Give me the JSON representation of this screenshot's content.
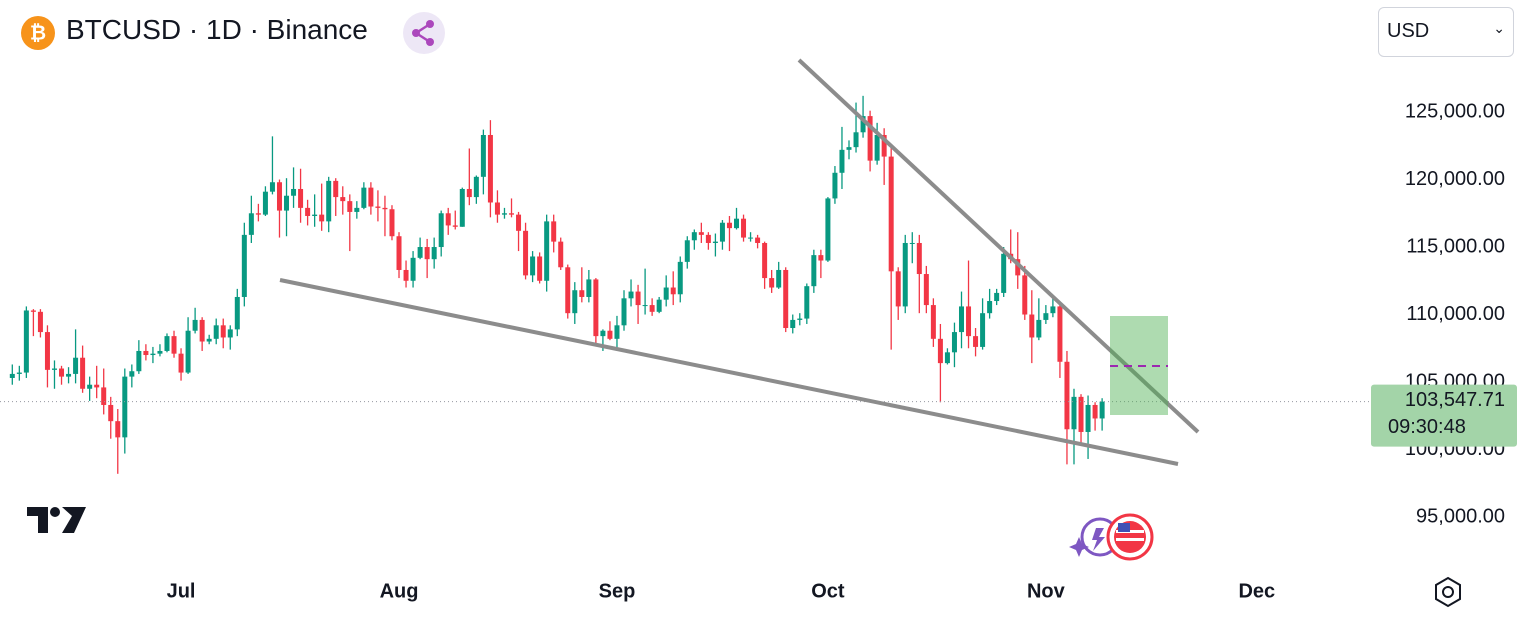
{
  "chart_data": {
    "type": "candlestick",
    "title": "BTCUSD · 1D · Binance",
    "currency": "USD",
    "last_price_label": "103,547.71",
    "countdown": "09:30:48",
    "color_up": "#089981",
    "color_down": "#f23645",
    "xlim": [
      -1.75,
      193.1
    ],
    "xticks": [
      {
        "value": 24,
        "label": "Jul"
      },
      {
        "value": 55,
        "label": "Aug"
      },
      {
        "value": 86,
        "label": "Sep"
      },
      {
        "value": 116,
        "label": "Oct"
      },
      {
        "value": 147,
        "label": "Nov"
      },
      {
        "value": 177,
        "label": "Dec"
      }
    ],
    "ylim": [
      91000,
      133300
    ],
    "yticks": [
      {
        "value": 95000,
        "label": "95,000.00"
      },
      {
        "value": 100000,
        "label": "100,000.00"
      },
      {
        "value": 105000,
        "label": "105,000.00"
      },
      {
        "value": 110000,
        "label": "110,000.00"
      },
      {
        "value": 115000,
        "label": "115,000.00"
      },
      {
        "value": 120000,
        "label": "120,000.00"
      },
      {
        "value": 125000,
        "label": "125,000.00"
      }
    ],
    "open": [
      105300,
      105600,
      105700,
      110300,
      110200,
      108700,
      105900,
      106000,
      105400,
      105600,
      106800,
      104500,
      104800,
      104600,
      103300,
      102100,
      100900,
      105400,
      105800,
      107300,
      107000,
      107100,
      107300,
      108400,
      107100,
      105700,
      108800,
      109600,
      108000,
      108200,
      109200,
      108300,
      108900,
      111300,
      115900,
      117500,
      117400,
      119100,
      119800,
      117700,
      118800,
      119300,
      117900,
      117300,
      117400,
      116900,
      119900,
      118700,
      118400,
      117600,
      117900,
      119400,
      118000,
      117900,
      117800,
      115800,
      113300,
      112500,
      114200,
      115000,
      114100,
      115000,
      117500,
      116600,
      116500,
      119300,
      118700,
      120200,
      123300,
      118300,
      117400,
      117500,
      117400,
      116200,
      112900,
      114300,
      112500,
      116900,
      115400,
      113500,
      110100,
      111800,
      111300,
      112600,
      108400,
      108800,
      108200,
      109200,
      111200,
      111700,
      110700,
      110700,
      110200,
      111100,
      112000,
      111500,
      113900,
      115500,
      116100,
      115900,
      115300,
      115400,
      116800,
      116400,
      117100,
      115700,
      115700,
      115300,
      112700,
      112000,
      113300,
      109000,
      109600,
      109700,
      112100,
      114400,
      114000,
      118600,
      120500,
      122200,
      122400,
      123500,
      124700,
      121400,
      123300,
      121700,
      113200,
      110600,
      115300,
      115300,
      113000,
      110700,
      108200,
      106400,
      107200,
      108700,
      110600,
      108400,
      107600,
      110100,
      111000,
      111600,
      114500,
      114100,
      112900,
      110000,
      108300,
      109600,
      110100,
      110600,
      106500,
      101500,
      103900,
      101300,
      103300,
      102300
    ],
    "high": [
      106300,
      106200,
      110600,
      110400,
      110400,
      109200,
      106600,
      106200,
      106100,
      108900,
      107700,
      105400,
      106200,
      106000,
      103900,
      103000,
      106000,
      106300,
      108100,
      107800,
      107600,
      107800,
      108600,
      108800,
      107500,
      109800,
      110500,
      109800,
      108500,
      109700,
      109700,
      109200,
      111900,
      116800,
      118800,
      118200,
      119500,
      123200,
      120000,
      120100,
      120900,
      120800,
      118500,
      118900,
      119700,
      120200,
      120100,
      119500,
      118900,
      118400,
      119800,
      119800,
      119200,
      118800,
      118100,
      116100,
      114000,
      114700,
      115700,
      115600,
      115700,
      117700,
      117900,
      117700,
      119400,
      122300,
      120300,
      123700,
      124400,
      119200,
      117900,
      118600,
      117600,
      116800,
      114700,
      114600,
      117400,
      117400,
      115700,
      113700,
      112400,
      113500,
      113300,
      112700,
      108900,
      109500,
      109900,
      111800,
      112600,
      112200,
      113400,
      111200,
      111300,
      112900,
      113200,
      114300,
      115800,
      116300,
      116800,
      116100,
      116000,
      117000,
      117300,
      117900,
      117400,
      116100,
      115900,
      115400,
      113300,
      113900,
      113500,
      110000,
      110100,
      112300,
      114800,
      114800,
      118700,
      121000,
      123900,
      122900,
      125700,
      126200,
      125100,
      124200,
      123800,
      122600,
      113500,
      115900,
      116100,
      115900,
      113600,
      111200,
      109300,
      107500,
      109400,
      111700,
      114000,
      109000,
      111200,
      111900,
      111900,
      115000,
      116300,
      116100,
      113600,
      111800,
      111200,
      110700,
      111200,
      110800,
      107300,
      104500,
      104100,
      104000,
      103500,
      103800
    ],
    "low": [
      104800,
      105100,
      105300,
      108400,
      108300,
      104600,
      104500,
      104800,
      104900,
      104900,
      104200,
      103600,
      103800,
      102600,
      100800,
      98200,
      99700,
      104600,
      105600,
      106600,
      106400,
      106900,
      107200,
      106800,
      105100,
      105600,
      108600,
      107300,
      107800,
      107800,
      107500,
      107400,
      108400,
      110600,
      115300,
      116900,
      117300,
      118900,
      115700,
      115800,
      117900,
      116800,
      116600,
      116500,
      116200,
      116100,
      117300,
      117400,
      114700,
      117100,
      117800,
      117400,
      116900,
      115800,
      115500,
      112700,
      112000,
      112000,
      114100,
      112700,
      113400,
      114300,
      115900,
      116300,
      116500,
      118100,
      118200,
      118900,
      117200,
      116800,
      117100,
      117200,
      114700,
      112600,
      112400,
      112300,
      111700,
      114600,
      113300,
      109700,
      109300,
      110900,
      110900,
      107800,
      107300,
      108100,
      107300,
      108800,
      110600,
      109300,
      110000,
      109900,
      110100,
      110600,
      110700,
      110900,
      113400,
      114800,
      115300,
      114800,
      114300,
      114800,
      114700,
      116300,
      115400,
      115400,
      114900,
      111900,
      111600,
      111900,
      108700,
      108600,
      109200,
      109300,
      111600,
      112700,
      113900,
      118200,
      119300,
      121500,
      122000,
      123100,
      120600,
      121100,
      119600,
      107400,
      109600,
      110100,
      113800,
      110100,
      110100,
      107600,
      103500,
      106300,
      106100,
      107500,
      107500,
      106900,
      107400,
      109700,
      110700,
      111300,
      113800,
      111900,
      109600,
      106400,
      108100,
      109300,
      109800,
      105300,
      98900,
      98900,
      100300,
      99300,
      101400,
      101400
    ],
    "close": [
      105600,
      105700,
      110300,
      110200,
      108700,
      105900,
      106000,
      105400,
      105600,
      106800,
      104500,
      104800,
      104600,
      103300,
      102100,
      100900,
      105400,
      105800,
      107300,
      107000,
      107100,
      107300,
      108400,
      107100,
      105700,
      108800,
      109600,
      108000,
      108200,
      109200,
      108300,
      108900,
      111300,
      115900,
      117500,
      117400,
      119100,
      119800,
      117700,
      118800,
      119300,
      117900,
      117300,
      117400,
      116900,
      119900,
      118700,
      118400,
      117600,
      117900,
      119400,
      118000,
      117900,
      117800,
      115800,
      113300,
      112500,
      114200,
      115000,
      114100,
      115000,
      117500,
      116600,
      116500,
      119300,
      118700,
      120200,
      123300,
      118300,
      117400,
      117500,
      117400,
      116200,
      112900,
      114300,
      112500,
      116900,
      115400,
      113500,
      110100,
      111800,
      111300,
      112600,
      108400,
      108800,
      108200,
      109200,
      111200,
      111700,
      110700,
      110700,
      110200,
      111100,
      112000,
      111500,
      113900,
      115500,
      116100,
      115900,
      115300,
      115400,
      116800,
      116400,
      117100,
      115700,
      115700,
      115300,
      112700,
      112000,
      113300,
      109000,
      109600,
      109700,
      112100,
      114400,
      114000,
      118600,
      120500,
      122200,
      122400,
      123500,
      124700,
      121400,
      123300,
      121700,
      113200,
      110600,
      115300,
      115300,
      113000,
      110700,
      108200,
      106400,
      107200,
      108700,
      110600,
      108400,
      107600,
      110100,
      111000,
      111600,
      114500,
      114100,
      112900,
      110000,
      108300,
      109600,
      110100,
      110600,
      106500,
      101500,
      103900,
      101300,
      103300,
      102300,
      103547.71
    ]
  }
}
